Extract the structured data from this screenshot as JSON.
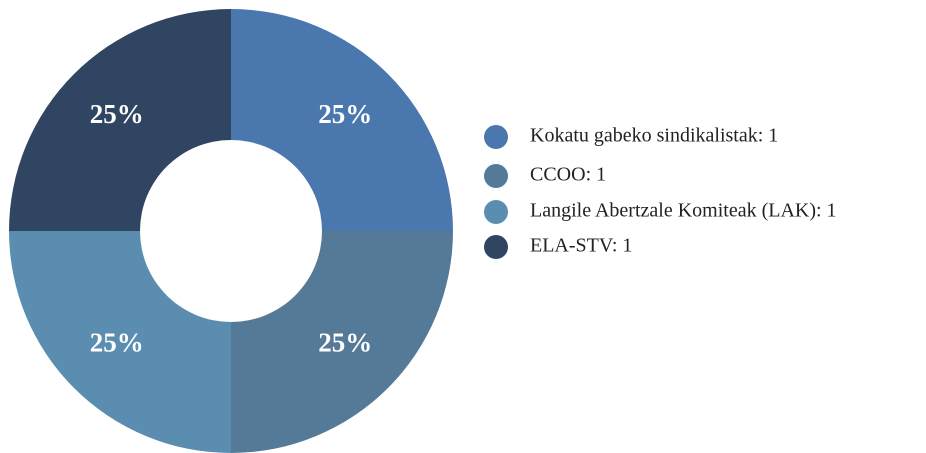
{
  "chart_data": {
    "type": "donut",
    "categories": [
      "Kokatu gabeko sindikalistak: 1",
      "CCOO: 1",
      "Langile Abertzale Komiteak (LAK): 1",
      "ELA-STV: 1"
    ],
    "values": [
      25,
      25,
      25,
      25
    ],
    "value_labels": [
      "25%",
      "25%",
      "25%",
      "25%"
    ],
    "colors": [
      "#4a78ae",
      "#557a98",
      "#5a8db0",
      "#2f4561"
    ]
  }
}
